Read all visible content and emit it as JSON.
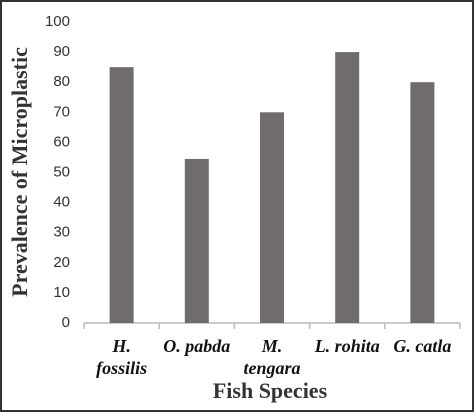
{
  "chart_data": {
    "type": "bar",
    "x_label": "Fish Species",
    "y_label": "Prevalence of Microplastic",
    "categories": [
      "H. fossilis",
      "O. pabda",
      "M. tengara",
      "L. rohita",
      "G. catla"
    ],
    "values": [
      85,
      54.5,
      70,
      90,
      80
    ],
    "color": "#716c6c",
    "ylim": [
      0,
      100
    ],
    "yticks": [
      0,
      10,
      20,
      30,
      40,
      50,
      60,
      70,
      80,
      90,
      100
    ],
    "grid": false
  }
}
